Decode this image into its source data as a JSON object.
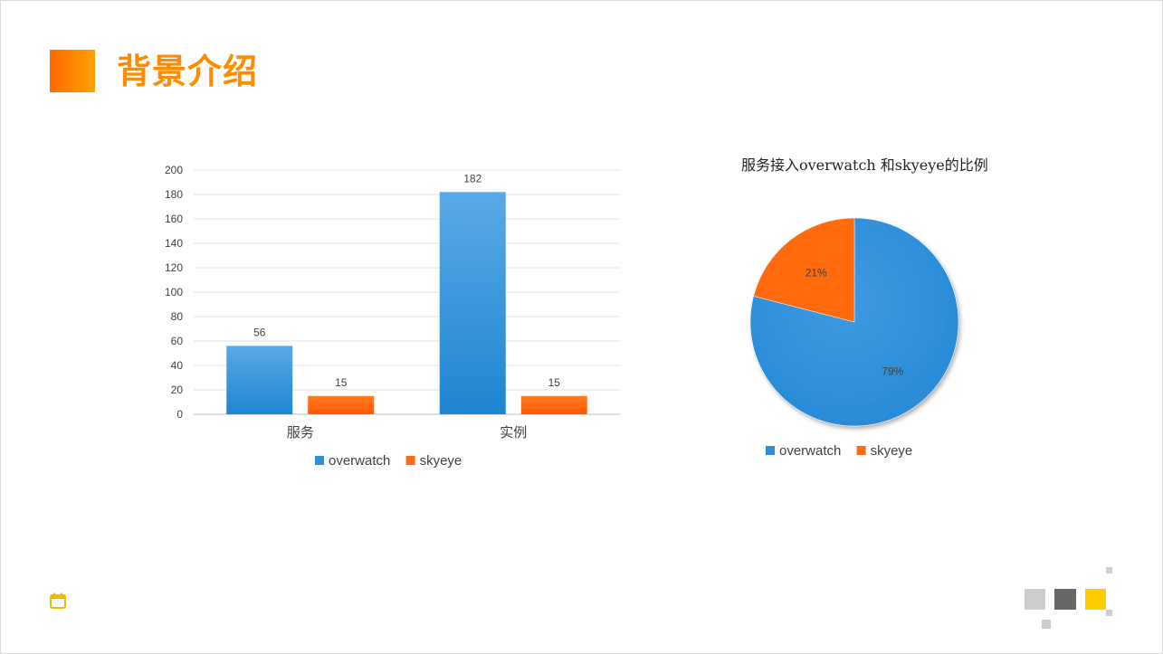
{
  "header": {
    "title": "背景介绍"
  },
  "bar_chart_data": {
    "type": "bar",
    "categories": [
      "服务",
      "实例"
    ],
    "series": [
      {
        "name": "overwatch",
        "values": [
          56,
          182
        ],
        "color": "#2e8fd9"
      },
      {
        "name": "skyeye",
        "values": [
          15,
          15
        ],
        "color": "#ff6a10"
      }
    ],
    "ylim": [
      0,
      200
    ],
    "yticks": [
      0,
      20,
      40,
      60,
      80,
      100,
      120,
      140,
      160,
      180,
      200
    ],
    "grid": true,
    "legend": "bottom"
  },
  "pie_chart_data": {
    "type": "pie",
    "title": "服务接入overwatch 和skyeye的比例",
    "slices": [
      {
        "name": "overwatch",
        "value": 79,
        "label": "79%",
        "color": "#2e8fd9"
      },
      {
        "name": "skyeye",
        "value": 21,
        "label": "21%",
        "color": "#ff6a10"
      }
    ],
    "legend": "bottom"
  },
  "chart_data": [
    {
      "type": "bar",
      "categories": [
        "服务",
        "实例"
      ],
      "series": [
        {
          "name": "overwatch",
          "values": [
            56,
            182
          ]
        },
        {
          "name": "skyeye",
          "values": [
            15,
            15
          ]
        }
      ],
      "ylim": [
        0,
        200
      ]
    },
    {
      "type": "pie",
      "title": "服务接入overwatch 和skyeye的比例",
      "slices": [
        {
          "name": "overwatch",
          "value": 79
        },
        {
          "name": "skyeye",
          "value": 21
        }
      ]
    }
  ],
  "icons": {
    "footer": "calendar-icon"
  }
}
